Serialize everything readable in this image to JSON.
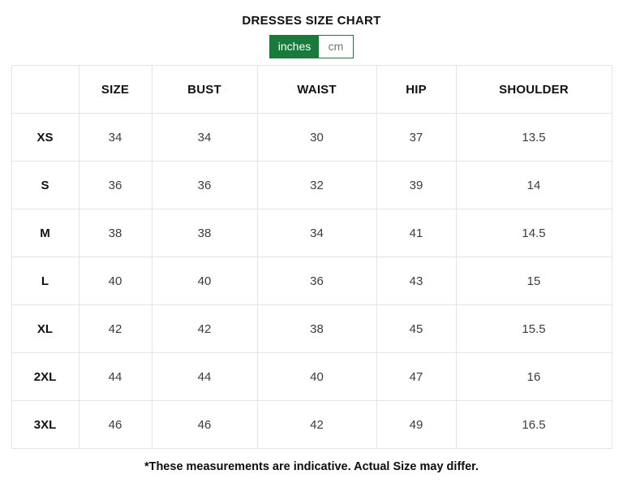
{
  "page": {
    "title": "DRESSES SIZE CHART",
    "footnote": "*These measurements are indicative. Actual Size may differ."
  },
  "unit_toggle": {
    "selected": "inches",
    "options": [
      {
        "label": "inches",
        "active": true
      },
      {
        "label": "cm",
        "active": false
      }
    ],
    "accent_color": "#1a7a3c"
  },
  "table": {
    "columns": [
      "",
      "SIZE",
      "BUST",
      "WAIST",
      "HIP",
      "SHOULDER"
    ],
    "rows": [
      {
        "label": "XS",
        "values": [
          34,
          34,
          30,
          37,
          13.5
        ]
      },
      {
        "label": "S",
        "values": [
          36,
          36,
          32,
          39,
          14
        ]
      },
      {
        "label": "M",
        "values": [
          38,
          38,
          34,
          41,
          14.5
        ]
      },
      {
        "label": "L",
        "values": [
          40,
          40,
          36,
          43,
          15
        ]
      },
      {
        "label": "XL",
        "values": [
          42,
          42,
          38,
          45,
          15.5
        ]
      },
      {
        "label": "2XL",
        "values": [
          44,
          44,
          40,
          47,
          16
        ]
      },
      {
        "label": "3XL",
        "values": [
          46,
          46,
          42,
          49,
          16.5
        ]
      }
    ]
  }
}
